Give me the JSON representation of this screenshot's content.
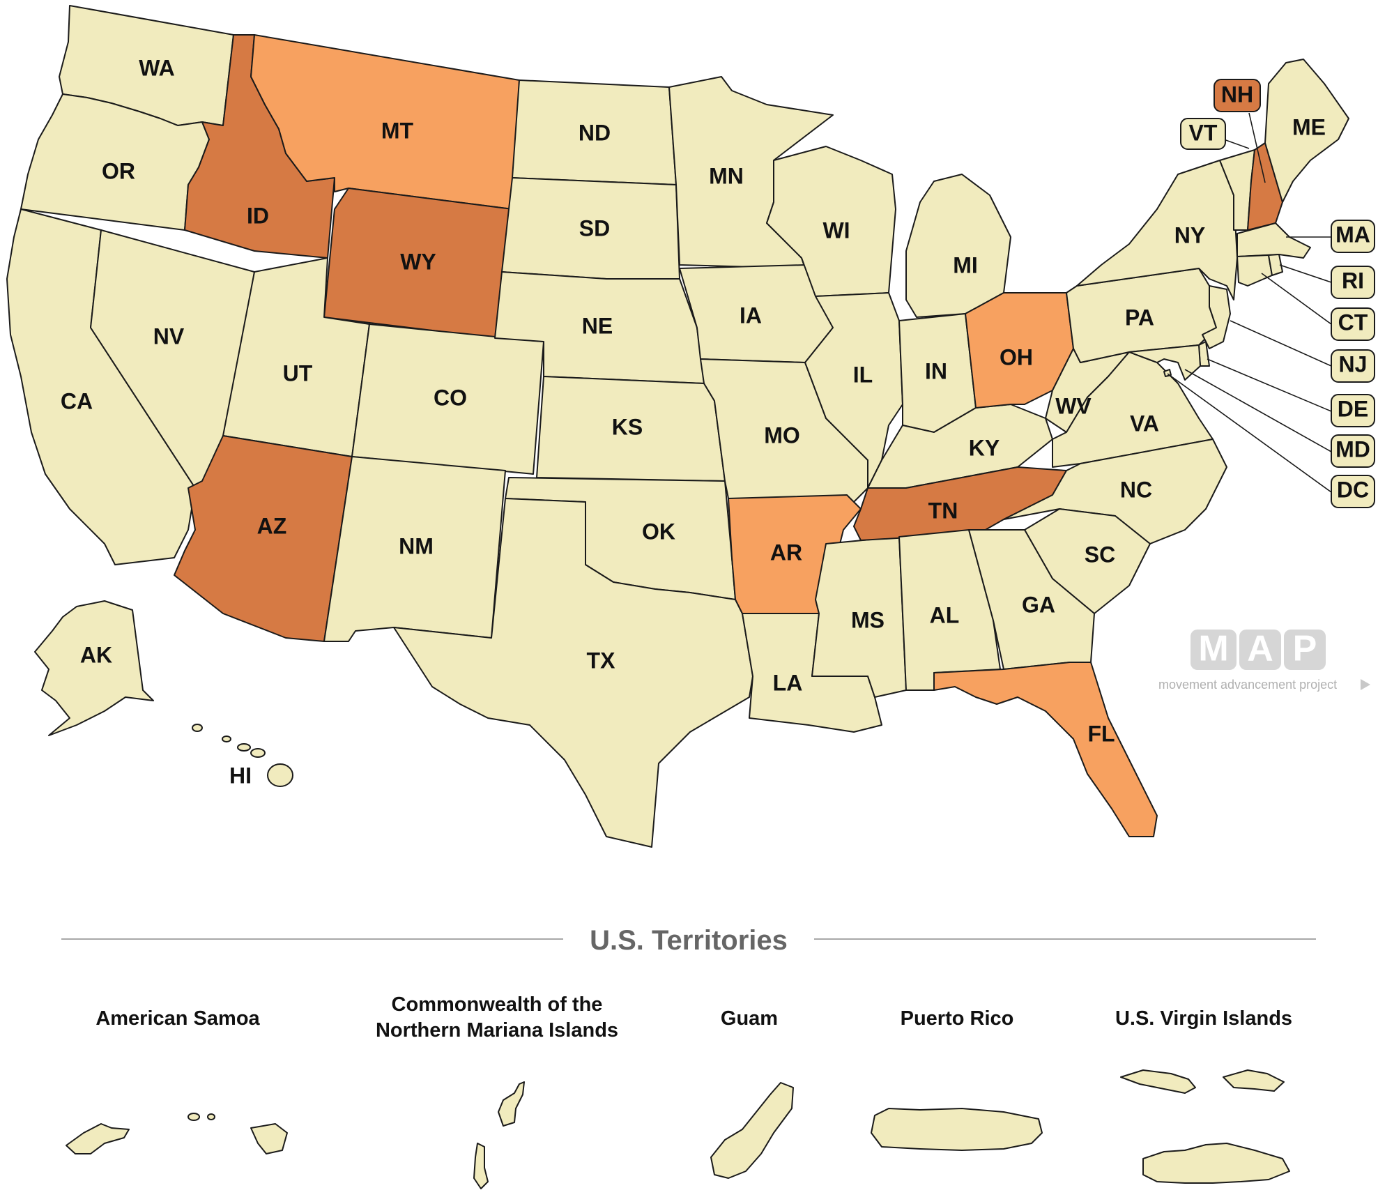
{
  "colors": {
    "base": "#f1ebbe",
    "dark": "#d67a44",
    "light": "#f7a160",
    "stroke": "#1a1a1a"
  },
  "states": [
    {
      "abbr": "WA",
      "fill": "base"
    },
    {
      "abbr": "OR",
      "fill": "base"
    },
    {
      "abbr": "CA",
      "fill": "base"
    },
    {
      "abbr": "NV",
      "fill": "base"
    },
    {
      "abbr": "ID",
      "fill": "dark"
    },
    {
      "abbr": "MT",
      "fill": "light"
    },
    {
      "abbr": "WY",
      "fill": "dark"
    },
    {
      "abbr": "UT",
      "fill": "base"
    },
    {
      "abbr": "CO",
      "fill": "base"
    },
    {
      "abbr": "AZ",
      "fill": "dark"
    },
    {
      "abbr": "NM",
      "fill": "base"
    },
    {
      "abbr": "ND",
      "fill": "base"
    },
    {
      "abbr": "SD",
      "fill": "base"
    },
    {
      "abbr": "NE",
      "fill": "base"
    },
    {
      "abbr": "KS",
      "fill": "base"
    },
    {
      "abbr": "OK",
      "fill": "base"
    },
    {
      "abbr": "TX",
      "fill": "base"
    },
    {
      "abbr": "MN",
      "fill": "base"
    },
    {
      "abbr": "IA",
      "fill": "base"
    },
    {
      "abbr": "MO",
      "fill": "base"
    },
    {
      "abbr": "AR",
      "fill": "light"
    },
    {
      "abbr": "LA",
      "fill": "base"
    },
    {
      "abbr": "WI",
      "fill": "base"
    },
    {
      "abbr": "IL",
      "fill": "base"
    },
    {
      "abbr": "MS",
      "fill": "base"
    },
    {
      "abbr": "MI",
      "fill": "base"
    },
    {
      "abbr": "IN",
      "fill": "base"
    },
    {
      "abbr": "KY",
      "fill": "base"
    },
    {
      "abbr": "TN",
      "fill": "dark"
    },
    {
      "abbr": "AL",
      "fill": "base"
    },
    {
      "abbr": "OH",
      "fill": "light"
    },
    {
      "abbr": "WV",
      "fill": "base"
    },
    {
      "abbr": "VA",
      "fill": "base"
    },
    {
      "abbr": "NC",
      "fill": "base"
    },
    {
      "abbr": "SC",
      "fill": "base"
    },
    {
      "abbr": "GA",
      "fill": "base"
    },
    {
      "abbr": "FL",
      "fill": "light"
    },
    {
      "abbr": "PA",
      "fill": "base"
    },
    {
      "abbr": "NY",
      "fill": "base"
    },
    {
      "abbr": "ME",
      "fill": "base"
    },
    {
      "abbr": "VT",
      "fill": "base"
    },
    {
      "abbr": "NH",
      "fill": "dark"
    },
    {
      "abbr": "MA",
      "fill": "base"
    },
    {
      "abbr": "RI",
      "fill": "base"
    },
    {
      "abbr": "CT",
      "fill": "base"
    },
    {
      "abbr": "NJ",
      "fill": "base"
    },
    {
      "abbr": "DE",
      "fill": "base"
    },
    {
      "abbr": "MD",
      "fill": "base"
    },
    {
      "abbr": "DC",
      "fill": "base"
    },
    {
      "abbr": "AK",
      "fill": "base"
    },
    {
      "abbr": "HI",
      "fill": "base"
    }
  ],
  "territories_section": {
    "title": "U.S. Territories",
    "items": [
      {
        "name": "American Samoa"
      },
      {
        "name_line1": "Commonwealth of the",
        "name_line2": "Northern Mariana Islands"
      },
      {
        "name": "Guam"
      },
      {
        "name": "Puerto Rico"
      },
      {
        "name": "U.S. Virgin Islands"
      }
    ]
  },
  "logo": {
    "letters": [
      "M",
      "A",
      "P"
    ],
    "tagline": "movement advancement project"
  }
}
